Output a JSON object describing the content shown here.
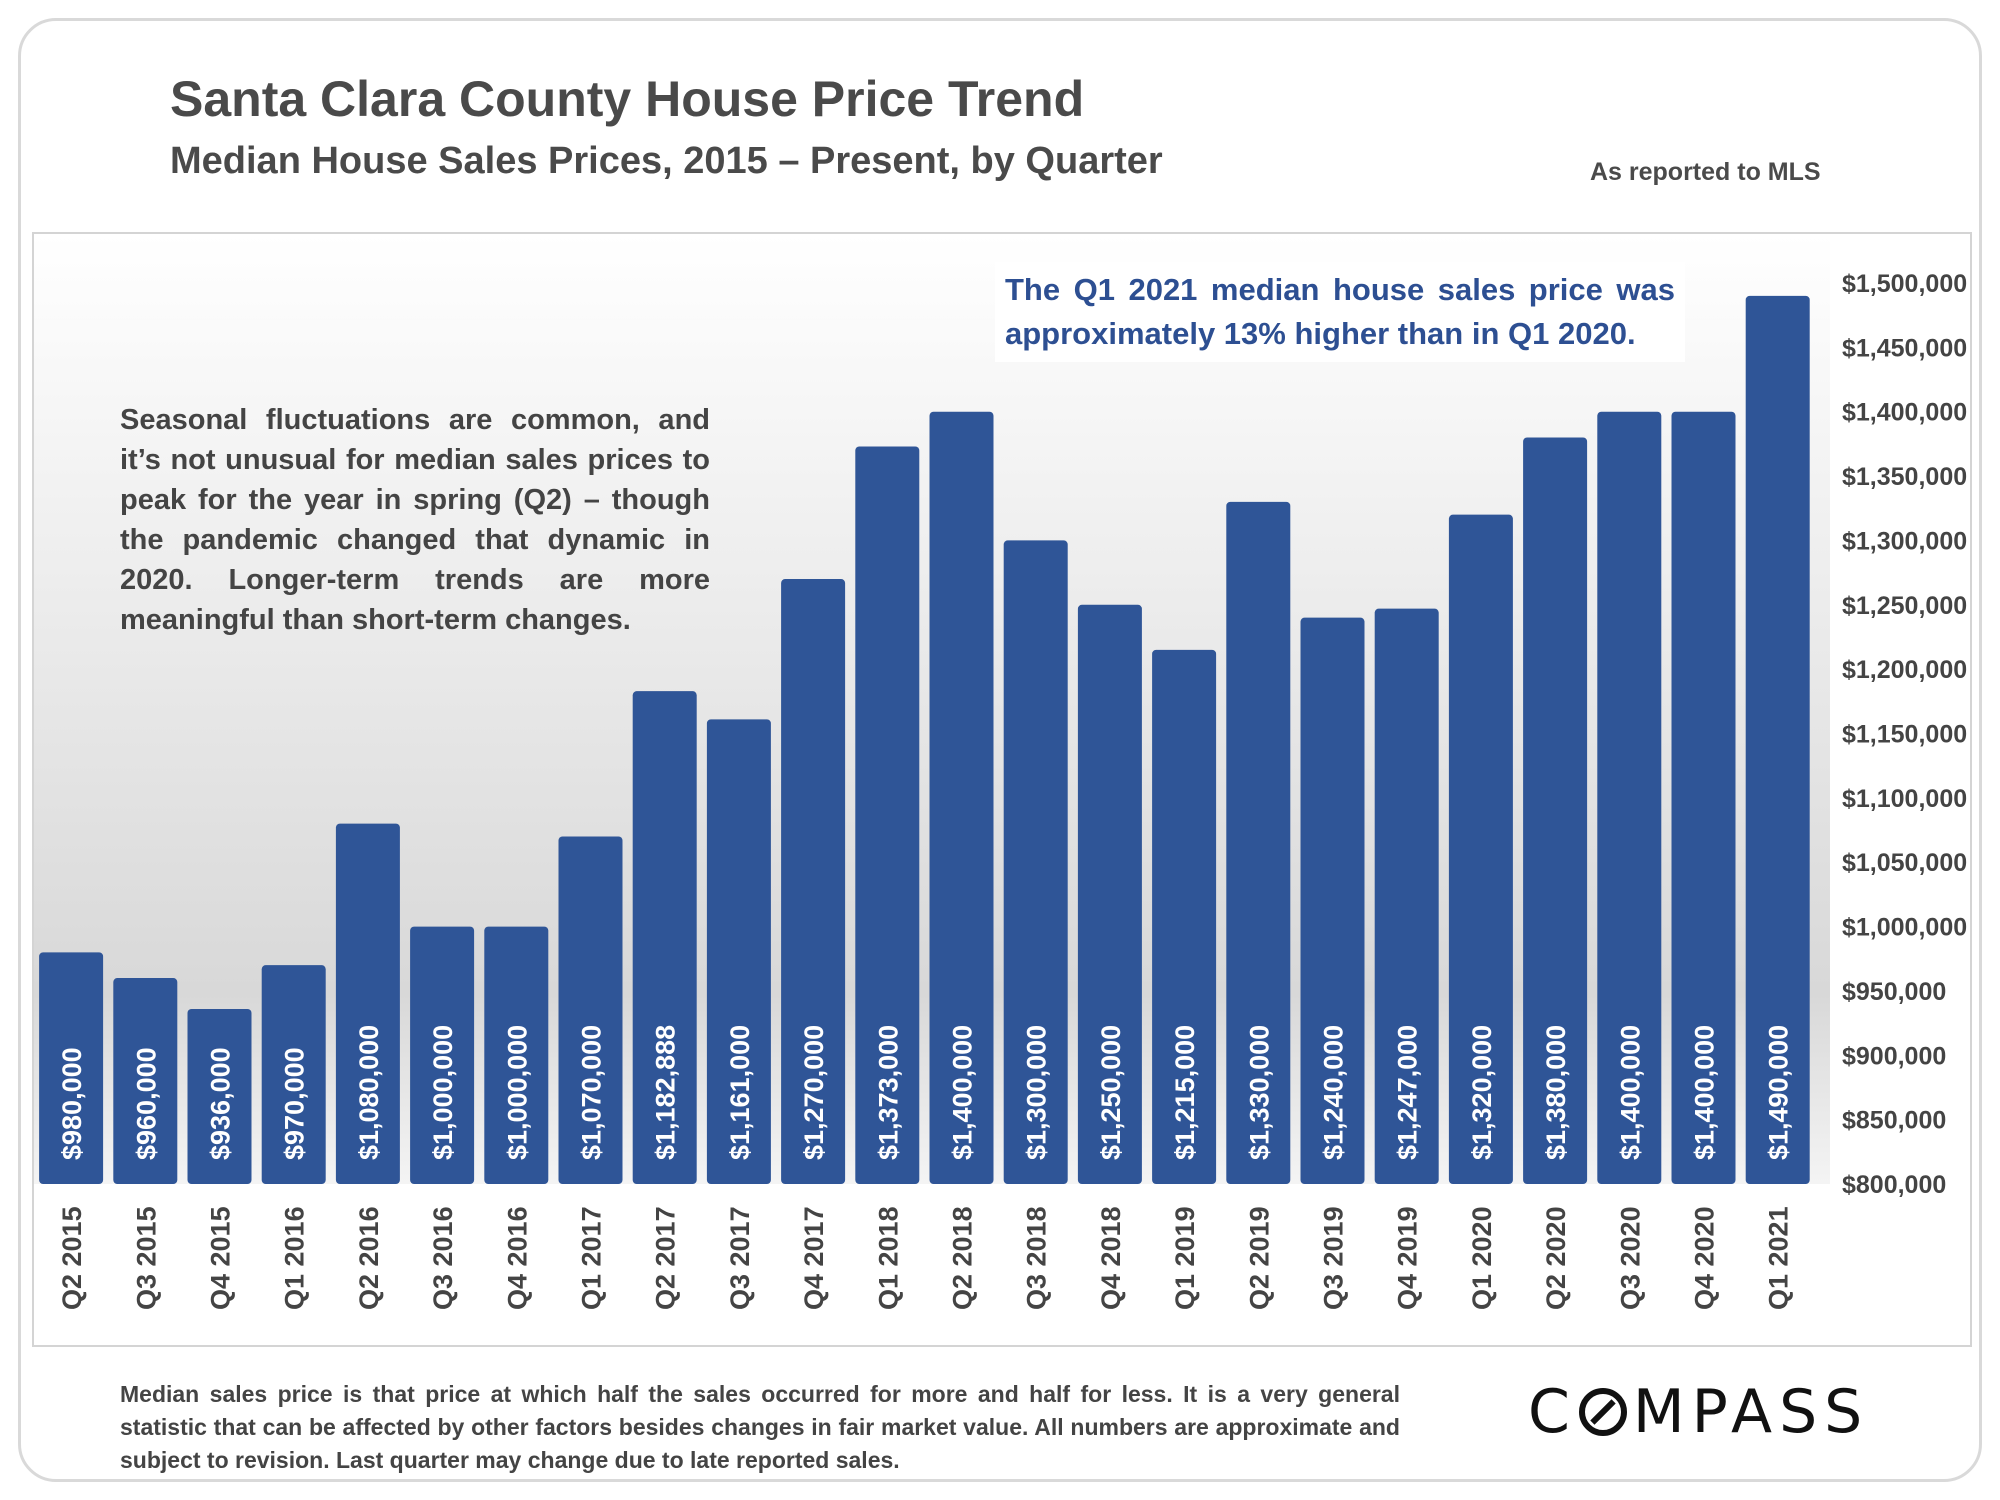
{
  "header": {
    "title": "Santa Clara County House Price Trend",
    "subtitle": "Median House Sales Prices, 2015 – Present, by Quarter",
    "source_note": "As reported to MLS"
  },
  "callout": "The Q1 2021 median house sales price was approximately 13% higher than in Q1 2020.",
  "note": "Seasonal fluctuations are common, and it’s not unusual for median sales prices to peak for the year in spring (Q2) – though the pandemic changed that dynamic in 2020. Longer-term trends are more meaningful than short-term changes.",
  "footnote": "Median sales price is that price at which half the sales occurred for more and half for less. It is a very general statistic that can be affected by other factors besides changes in fair market value. All numbers are approximate and subject to revision. Last quarter may change due to late reported sales.",
  "logo": {
    "before": "C",
    "after": "MPASS"
  },
  "colors": {
    "bar": "#2f5597",
    "bar_label": "#ffffff",
    "axis_text": "#444444"
  },
  "chart_data": {
    "type": "bar",
    "categories": [
      "Q2 2015",
      "Q3 2015",
      "Q4 2015",
      "Q1 2016",
      "Q2 2016",
      "Q3 2016",
      "Q4 2016",
      "Q1 2017",
      "Q2 2017",
      "Q3 2017",
      "Q4 2017",
      "Q1 2018",
      "Q2 2018",
      "Q3 2018",
      "Q4 2018",
      "Q1 2019",
      "Q2 2019",
      "Q3 2019",
      "Q4 2019",
      "Q1 2020",
      "Q2 2020",
      "Q3 2020",
      "Q4 2020",
      "Q1 2021"
    ],
    "values": [
      980000,
      960000,
      936000,
      970000,
      1080000,
      1000000,
      1000000,
      1070000,
      1182888,
      1161000,
      1270000,
      1373000,
      1400000,
      1300000,
      1250000,
      1215000,
      1330000,
      1240000,
      1247000,
      1320000,
      1380000,
      1400000,
      1400000,
      1490000
    ],
    "data_labels": [
      "$980,000",
      "$960,000",
      "$936,000",
      "$970,000",
      "$1,080,000",
      "$1,000,000",
      "$1,000,000",
      "$1,070,000",
      "$1,182,888",
      "$1,161,000",
      "$1,270,000",
      "$1,373,000",
      "$1,400,000",
      "$1,300,000",
      "$1,250,000",
      "$1,215,000",
      "$1,330,000",
      "$1,240,000",
      "$1,247,000",
      "$1,320,000",
      "$1,380,000",
      "$1,400,000",
      "$1,400,000",
      "$1,490,000"
    ],
    "ylim": [
      800000,
      1500000
    ],
    "y_ticks": [
      800000,
      850000,
      900000,
      950000,
      1000000,
      1050000,
      1100000,
      1150000,
      1200000,
      1250000,
      1300000,
      1350000,
      1400000,
      1450000,
      1500000
    ],
    "y_tick_labels": [
      "$800,000",
      "$850,000",
      "$900,000",
      "$950,000",
      "$1,000,000",
      "$1,050,000",
      "$1,100,000",
      "$1,150,000",
      "$1,200,000",
      "$1,250,000",
      "$1,300,000",
      "$1,350,000",
      "$1,400,000",
      "$1,450,000",
      "$1,500,000"
    ],
    "y_axis_position": "right",
    "grid": false,
    "legend": "none"
  }
}
